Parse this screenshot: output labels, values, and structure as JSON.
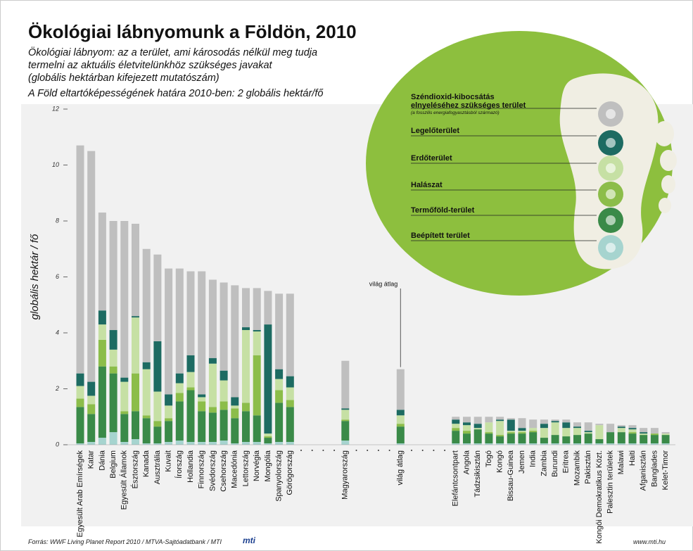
{
  "chart_data": {
    "type": "stacked-bar",
    "title": "Ökológiai lábnyomunk a Földön, 2010",
    "subtitle": [
      "Ökológiai lábnyom: az a terület, ami károsodás nélkül meg tudja",
      "termelni az aktuális életvitelünkhöz szükséges javakat",
      "(globális hektárban kifejezett mutatószám)"
    ],
    "limit_note": "A Föld eltartóképességének határa 2010-ben: 2 globális hektár/fő",
    "y_label": "globális hektár / fő",
    "annotation": "világ átlag",
    "legend_note": "(a fosszilis energiafogyasztásból származó)",
    "source": "Forrás: WWF Living Planet Report 2010 / MTVA-Sajtóadatbank / MTI",
    "logo": "mti",
    "website": "www.mti.hu",
    "ylim": [
      0,
      12
    ],
    "yticks": [
      0,
      2,
      4,
      6,
      8,
      10,
      12
    ],
    "grid": false,
    "categories": [
      "Egyesült Arab Emírségek",
      "Katar",
      "Dánia",
      "Belgium",
      "Egyesült Államok",
      "Észtország",
      "Kanada",
      "Ausztrália",
      "Kuvait",
      "Írország",
      "Hollandia",
      "Finnország",
      "Svédország",
      "Csehország",
      "Macedónia",
      "Lettország",
      "Norvégia",
      "Mongólia",
      "Spanyolország",
      "Görögország",
      null,
      null,
      null,
      null,
      "Magyarország",
      null,
      null,
      null,
      null,
      "világ átlag",
      null,
      null,
      null,
      null,
      "Elefántcsontpart",
      "Angola",
      "Tádzsikisztán",
      "Togó",
      "Kongó",
      "Bissau-Guinea",
      "Jemen",
      "India",
      "Zambia",
      "Burundi",
      "Eritrea",
      "Mozambik",
      "Pakisztán",
      "Kongói Demokratikus Közt.",
      "Palesztin területek",
      "Malawi",
      "Haiti",
      "Afganisztán",
      "Banglades",
      "Kelet-Timor"
    ],
    "series": [
      {
        "name": "Beépített terület",
        "color": "#a6d4cf",
        "values": [
          0.05,
          0.1,
          0.25,
          0.45,
          0.1,
          0.2,
          0.05,
          0.05,
          0.1,
          0.15,
          0.1,
          0.1,
          0.1,
          0.15,
          0.05,
          0.1,
          0.1,
          0.05,
          0.1,
          0.1,
          null,
          null,
          null,
          null,
          0.15,
          null,
          null,
          null,
          null,
          0.05,
          null,
          null,
          null,
          null,
          0.05,
          0.05,
          0.05,
          0.05,
          0.05,
          0.05,
          0.05,
          0.05,
          0.05,
          0.05,
          0.05,
          0.05,
          0.05,
          0.05,
          0.05,
          0.05,
          0.05,
          0.05,
          0.05,
          0.05
        ]
      },
      {
        "name": "Termőföld-terület",
        "color": "#3a8a48",
        "values": [
          1.3,
          1.0,
          2.55,
          2.1,
          1.0,
          1.0,
          0.9,
          0.6,
          0.75,
          1.4,
          1.85,
          1.1,
          1.05,
          1.1,
          0.9,
          1.1,
          0.95,
          0.2,
          1.4,
          1.25,
          null,
          null,
          null,
          null,
          0.7,
          null,
          null,
          null,
          null,
          0.6,
          null,
          null,
          null,
          null,
          0.45,
          0.35,
          0.5,
          0.35,
          0.25,
          0.35,
          0.35,
          0.4,
          0.2,
          0.3,
          0.25,
          0.3,
          0.35,
          0.15,
          0.4,
          0.4,
          0.35,
          0.3,
          0.3,
          0.3
        ]
      },
      {
        "name": "Halászat",
        "color": "#8cbd4a",
        "values": [
          0.3,
          0.35,
          0.95,
          0.25,
          0.1,
          1.35,
          0.1,
          0.2,
          0.1,
          0.3,
          0.1,
          0.35,
          0.2,
          0.3,
          0.35,
          0.3,
          2.15,
          0.05,
          0.45,
          0.25,
          null,
          null,
          null,
          null,
          0.05,
          null,
          null,
          null,
          null,
          0.1,
          null,
          null,
          null,
          null,
          0.1,
          0.1,
          0,
          0.05,
          0.05,
          0.05,
          0.05,
          0.05,
          0,
          0,
          0,
          0,
          0,
          0,
          0,
          0,
          0.05,
          0,
          0.05,
          0
        ]
      },
      {
        "name": "Erdőterület",
        "color": "#c6e0a4",
        "values": [
          0.45,
          0.3,
          0.55,
          0.6,
          1.05,
          2.0,
          1.65,
          1.05,
          0.45,
          0.35,
          0.55,
          0.15,
          1.55,
          0.75,
          0.1,
          2.6,
          0.85,
          0.1,
          0.4,
          0.45,
          null,
          null,
          null,
          null,
          0.35,
          null,
          null,
          null,
          null,
          0.3,
          null,
          null,
          null,
          null,
          0.15,
          0.2,
          0.05,
          0.35,
          0.5,
          0.05,
          0.05,
          0.1,
          0.35,
          0.45,
          0.3,
          0.25,
          0.05,
          0.5,
          0,
          0.15,
          0.1,
          0.05,
          0,
          0.05
        ]
      },
      {
        "name": "Legelőterület",
        "color": "#1d6b62",
        "values": [
          0.45,
          0.5,
          0.5,
          0.7,
          0.15,
          0.05,
          0.25,
          1.8,
          0.4,
          0.35,
          0.6,
          0.1,
          0.2,
          0.35,
          0.3,
          0.1,
          0.05,
          3.9,
          0.35,
          0.4,
          null,
          null,
          null,
          null,
          0.05,
          null,
          null,
          null,
          null,
          0.2,
          null,
          null,
          null,
          null,
          0.15,
          0.1,
          0.15,
          0,
          0.05,
          0.4,
          0.1,
          0,
          0.15,
          0.05,
          0.2,
          0.05,
          0.05,
          0,
          0,
          0.05,
          0.05,
          0.05,
          0,
          0
        ]
      },
      {
        "name": "Széndioxid-kibocsátás elnyeléséhez szükséges terület",
        "color": "#bfbfbf",
        "values": [
          8.15,
          8.25,
          3.5,
          3.9,
          5.6,
          3.3,
          4.05,
          3.1,
          4.5,
          3.75,
          3.0,
          4.4,
          2.8,
          3.15,
          4.0,
          1.4,
          1.5,
          1.2,
          2.7,
          2.95,
          null,
          null,
          null,
          null,
          1.7,
          null,
          null,
          null,
          null,
          1.45,
          null,
          null,
          null,
          null,
          0.1,
          0.2,
          0.25,
          0.2,
          0.1,
          0.05,
          0.35,
          0.3,
          0.15,
          0.05,
          0.1,
          0.15,
          0.3,
          0.05,
          0.3,
          0.05,
          0.1,
          0.15,
          0.2,
          0.05
        ]
      }
    ]
  }
}
